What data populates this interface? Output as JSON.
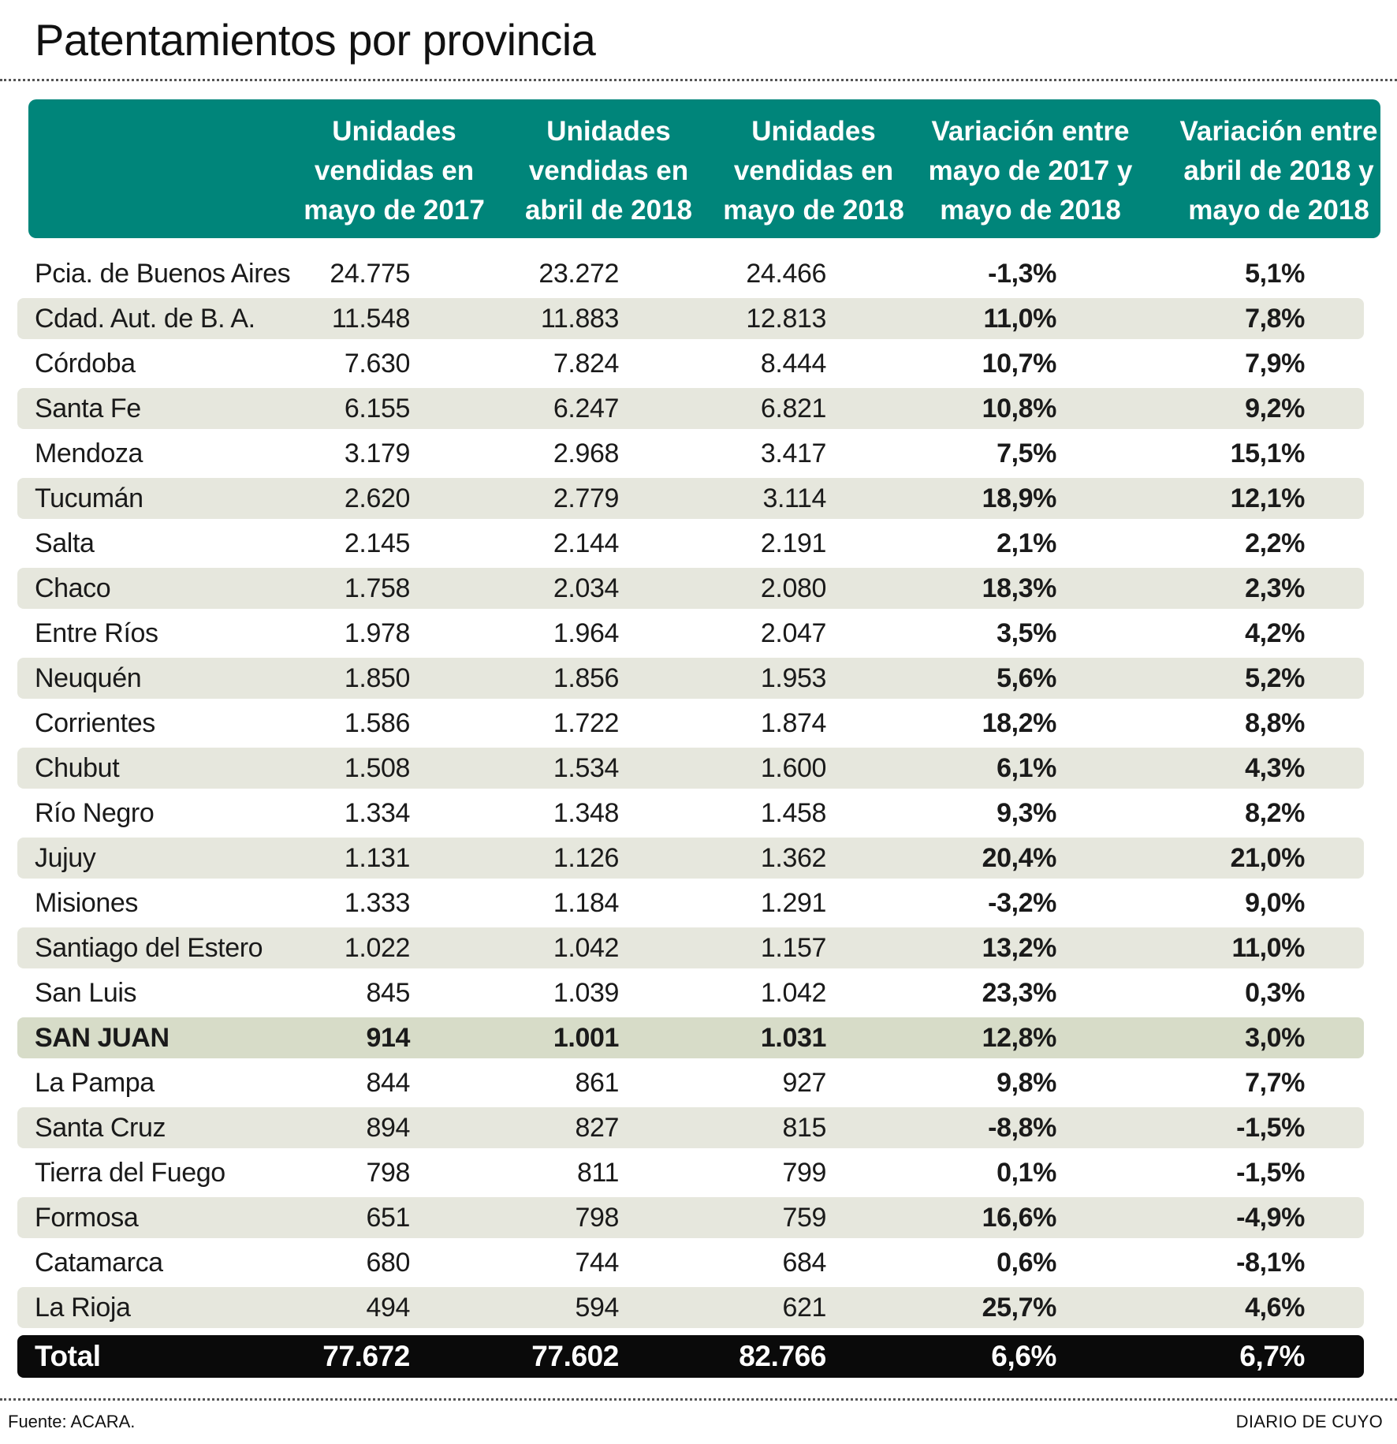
{
  "title": "Patentamientos por provincia",
  "source": "Fuente: ACARA.",
  "brand": "DIARIO DE CUYO",
  "chart_data": {
    "type": "table",
    "title": "Patentamientos por provincia",
    "columns": [
      "",
      "Unidades\nvendidas en\nmayo de 2017",
      "Unidades\nvendidas en\nabril de 2018",
      "Unidades\nvendidas en\nmayo de 2018",
      "Variación entre\nmayo de 2017 y\nmayo de 2018",
      "Variación entre\nabril de 2018 y\nmayo de 2018"
    ],
    "rows": [
      [
        "Pcia. de Buenos Aires",
        "24.775",
        "23.272",
        "24.466",
        "-1,3%",
        "5,1%"
      ],
      [
        "Cdad. Aut. de B. A.",
        "11.548",
        "11.883",
        "12.813",
        "11,0%",
        "7,8%"
      ],
      [
        "Córdoba",
        "7.630",
        "7.824",
        "8.444",
        "10,7%",
        "7,9%"
      ],
      [
        "Santa Fe",
        "6.155",
        "6.247",
        "6.821",
        "10,8%",
        "9,2%"
      ],
      [
        "Mendoza",
        "3.179",
        "2.968",
        "3.417",
        "7,5%",
        "15,1%"
      ],
      [
        "Tucumán",
        "2.620",
        "2.779",
        "3.114",
        "18,9%",
        "12,1%"
      ],
      [
        "Salta",
        "2.145",
        "2.144",
        "2.191",
        "2,1%",
        "2,2%"
      ],
      [
        "Chaco",
        "1.758",
        "2.034",
        "2.080",
        "18,3%",
        "2,3%"
      ],
      [
        "Entre Ríos",
        "1.978",
        "1.964",
        "2.047",
        "3,5%",
        "4,2%"
      ],
      [
        "Neuquén",
        "1.850",
        "1.856",
        "1.953",
        "5,6%",
        "5,2%"
      ],
      [
        "Corrientes",
        "1.586",
        "1.722",
        "1.874",
        "18,2%",
        "8,8%"
      ],
      [
        "Chubut",
        "1.508",
        "1.534",
        "1.600",
        "6,1%",
        "4,3%"
      ],
      [
        "Río Negro",
        "1.334",
        "1.348",
        "1.458",
        "9,3%",
        "8,2%"
      ],
      [
        "Jujuy",
        "1.131",
        "1.126",
        "1.362",
        "20,4%",
        "21,0%"
      ],
      [
        "Misiones",
        "1.333",
        "1.184",
        "1.291",
        "-3,2%",
        "9,0%"
      ],
      [
        "Santiago del Estero",
        "1.022",
        "1.042",
        "1.157",
        "13,2%",
        "11,0%"
      ],
      [
        "San Luis",
        "845",
        "1.039",
        "1.042",
        "23,3%",
        "0,3%"
      ],
      [
        "SAN JUAN",
        "914",
        "1.001",
        "1.031",
        "12,8%",
        "3,0%"
      ],
      [
        "La Pampa",
        "844",
        "861",
        "927",
        "9,8%",
        "7,7%"
      ],
      [
        "Santa Cruz",
        "894",
        "827",
        "815",
        "-8,8%",
        "-1,5%"
      ],
      [
        "Tierra del Fuego",
        "798",
        "811",
        "799",
        "0,1%",
        "-1,5%"
      ],
      [
        "Formosa",
        "651",
        "798",
        "759",
        "16,6%",
        "-4,9%"
      ],
      [
        "Catamarca",
        "680",
        "744",
        "684",
        "0,6%",
        "-8,1%"
      ],
      [
        "La Rioja",
        "494",
        "594",
        "621",
        "25,7%",
        "4,6%"
      ]
    ],
    "highlight_row": "SAN JUAN",
    "total": [
      "Total",
      "77.672",
      "77.602",
      "82.766",
      "6,6%",
      "6,7%"
    ],
    "colors": {
      "header": "#00857a",
      "shade": "#e6e7dd",
      "highlight": "#d7dcc8",
      "total": "#0a0a0a"
    }
  }
}
